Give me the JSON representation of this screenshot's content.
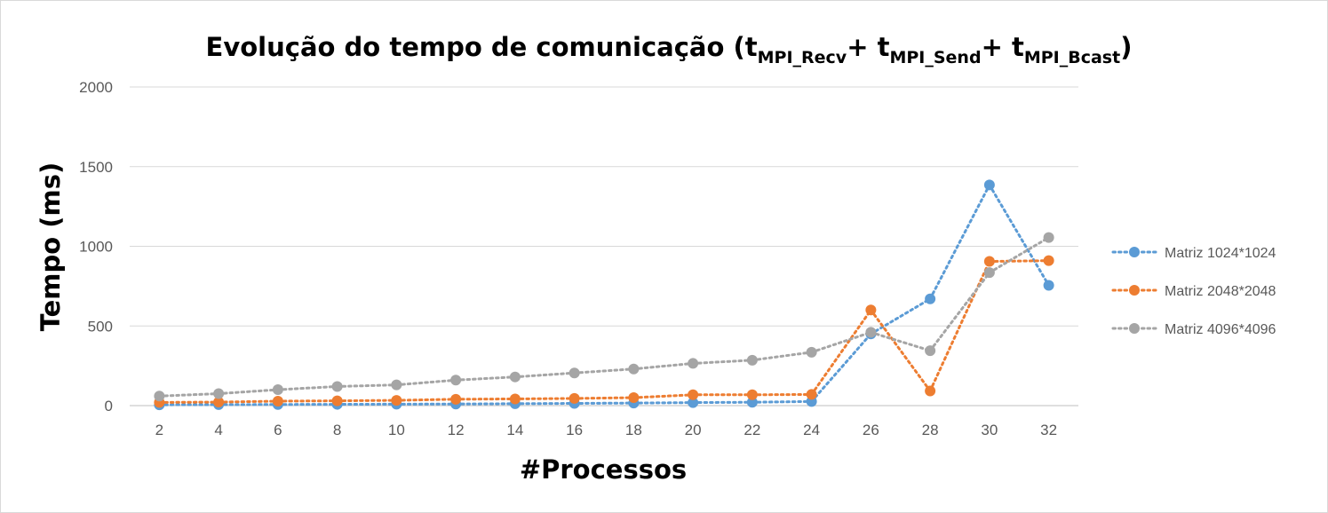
{
  "chart_data": {
    "type": "line",
    "title": {
      "main": "Evolução do tempo de comunicação (t",
      "parts": [
        {
          "sub": "MPI_Recv",
          "after": "+ t"
        },
        {
          "sub": "MPI_Send",
          "after": "+ t"
        },
        {
          "sub": "MPI_Bcast",
          "after": ")"
        }
      ]
    },
    "xlabel": "#Processos",
    "ylabel": "Tempo (ms)",
    "x": [
      2,
      4,
      6,
      8,
      10,
      12,
      14,
      16,
      18,
      20,
      22,
      24,
      26,
      28,
      30,
      32
    ],
    "ylim": [
      0,
      2000
    ],
    "yticks": [
      0,
      500,
      1000,
      1500,
      2000
    ],
    "grid": true,
    "legend_position": "right",
    "series": [
      {
        "name": "Matriz 1024*1024",
        "color": "#5B9BD5",
        "values": [
          5,
          6,
          7,
          8,
          9,
          10,
          12,
          14,
          16,
          19,
          21,
          26,
          450,
          670,
          1385,
          755
        ]
      },
      {
        "name": "Matriz 2048*2048",
        "color": "#ED7D31",
        "values": [
          20,
          22,
          28,
          30,
          33,
          40,
          42,
          45,
          50,
          68,
          68,
          70,
          600,
          92,
          905,
          910
        ]
      },
      {
        "name": "Matriz 4096*4096",
        "color": "#A5A5A5",
        "values": [
          60,
          75,
          100,
          120,
          130,
          160,
          180,
          205,
          230,
          265,
          285,
          335,
          460,
          345,
          835,
          1055
        ]
      }
    ]
  }
}
